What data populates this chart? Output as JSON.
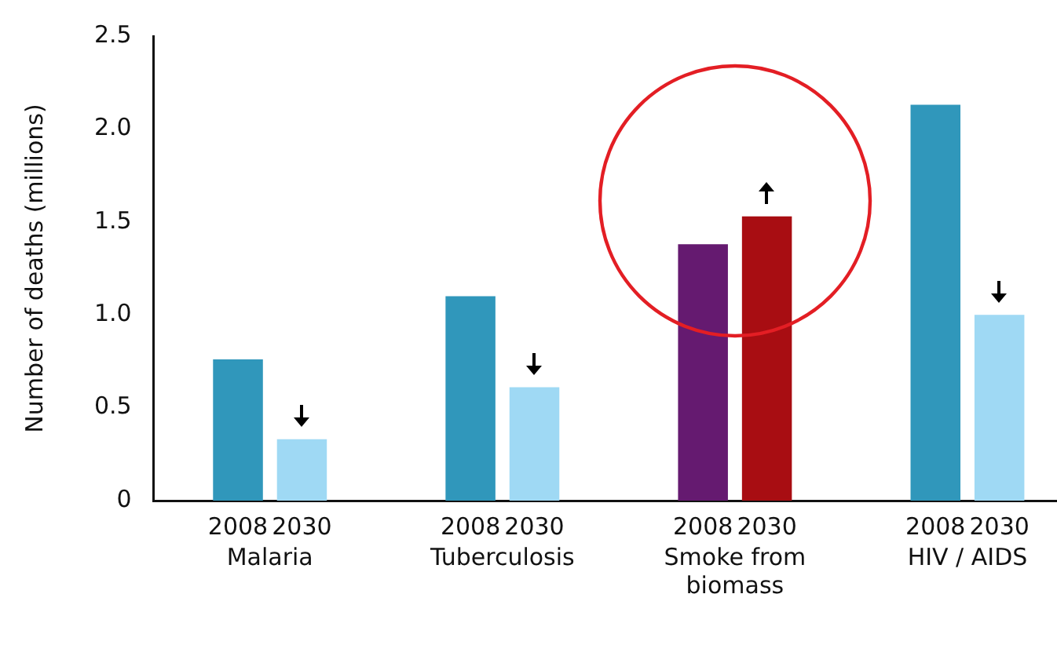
{
  "chart_data": {
    "type": "bar",
    "ylabel": "Number of deaths (millions)",
    "categories": [
      "Malaria",
      "Tuberculosis",
      "Smoke from biomass",
      "HIV / AIDS"
    ],
    "series": [
      {
        "name": "2008",
        "colors": [
          "#3097bb",
          "#3097bb",
          "#651a70",
          "#3097bb"
        ],
        "values": [
          0.76,
          1.1,
          1.38,
          2.13
        ]
      },
      {
        "name": "2030",
        "colors": [
          "#9fd9f4",
          "#9fd9f4",
          "#a80d12",
          "#9fd9f4"
        ],
        "values": [
          0.33,
          0.61,
          1.53,
          1.0
        ]
      }
    ],
    "ylim": [
      0,
      2.5
    ],
    "yticks": [
      0,
      0.5,
      {
        "value": 1,
        "label": "1.0"
      },
      1.5,
      {
        "value": 2,
        "label": "2.0"
      },
      2.5
    ],
    "grid": false,
    "legend": false
  }
}
